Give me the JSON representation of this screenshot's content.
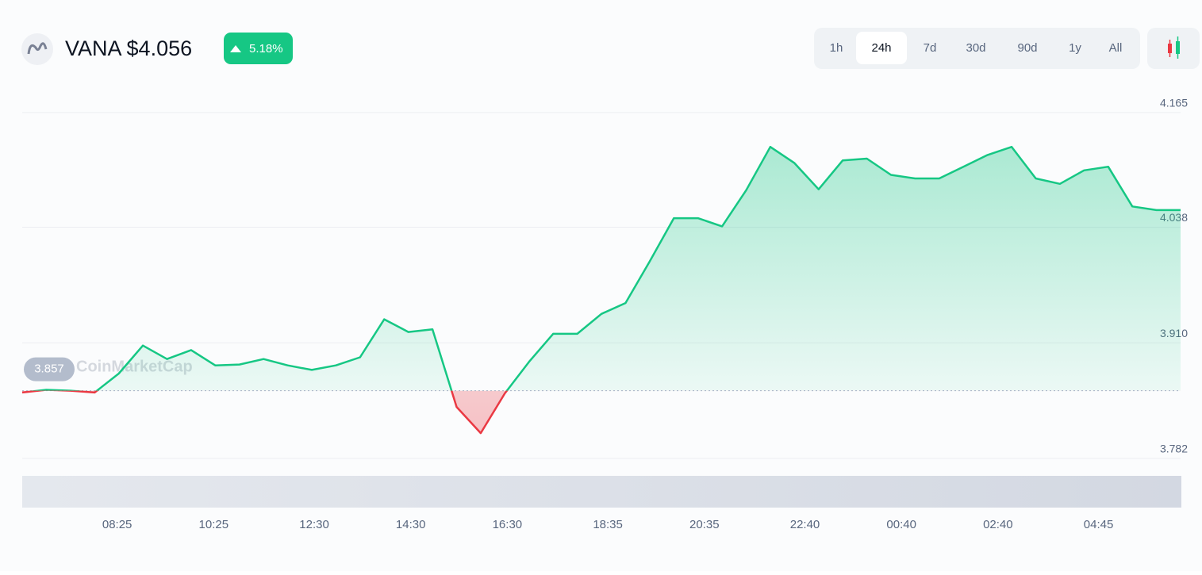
{
  "header": {
    "title": "VANA $4.056",
    "change": "5.18%",
    "timeframes": [
      "1h",
      "24h",
      "7d",
      "30d",
      "90d",
      "1y",
      "All"
    ],
    "active_timeframe": "24h"
  },
  "chart_data": {
    "type": "line",
    "watermark": "CoinMarketCap",
    "x": [
      "06:27",
      "06:57",
      "07:27",
      "07:57",
      "08:27",
      "08:57",
      "09:27",
      "09:57",
      "10:27",
      "10:57",
      "11:27",
      "11:57",
      "12:27",
      "12:57",
      "13:27",
      "13:57",
      "14:27",
      "14:57",
      "15:27",
      "15:57",
      "16:27",
      "16:57",
      "17:27",
      "17:57",
      "18:27",
      "18:57",
      "19:27",
      "19:57",
      "20:27",
      "20:57",
      "21:27",
      "21:57",
      "22:27",
      "22:57",
      "23:27",
      "23:57",
      "00:27",
      "00:57",
      "01:27",
      "01:57",
      "02:27",
      "02:57",
      "03:27",
      "03:57",
      "04:27",
      "04:57",
      "05:27",
      "05:57",
      "06:27"
    ],
    "values": [
      3.855,
      3.858,
      3.857,
      3.855,
      3.876,
      3.907,
      3.892,
      3.902,
      3.885,
      3.886,
      3.892,
      3.885,
      3.88,
      3.885,
      3.894,
      3.936,
      3.922,
      3.925,
      3.839,
      3.81,
      3.854,
      3.889,
      3.92,
      3.92,
      3.942,
      3.954,
      4.0,
      4.048,
      4.048,
      4.039,
      4.079,
      4.127,
      4.109,
      4.08,
      4.112,
      4.114,
      4.096,
      4.092,
      4.092,
      4.105,
      4.118,
      4.127,
      4.092,
      4.086,
      4.101,
      4.105,
      4.061,
      4.057,
      4.057
    ],
    "baseline": 3.857,
    "baseline_label": "3.857",
    "color": "#16c784",
    "below_color": "#ea3943",
    "ylim": [
      3.782,
      4.193
    ],
    "yticks": [
      {
        "value": 4.165,
        "label": "4.165"
      },
      {
        "value": 4.038,
        "label": "4.038"
      },
      {
        "value": 3.91,
        "label": "3.910"
      },
      {
        "value": 3.782,
        "label": "3.782"
      }
    ],
    "xticks": [
      "08:25",
      "10:25",
      "12:30",
      "14:30",
      "16:30",
      "18:35",
      "20:35",
      "22:40",
      "00:40",
      "02:40",
      "04:45"
    ],
    "grid": true
  }
}
